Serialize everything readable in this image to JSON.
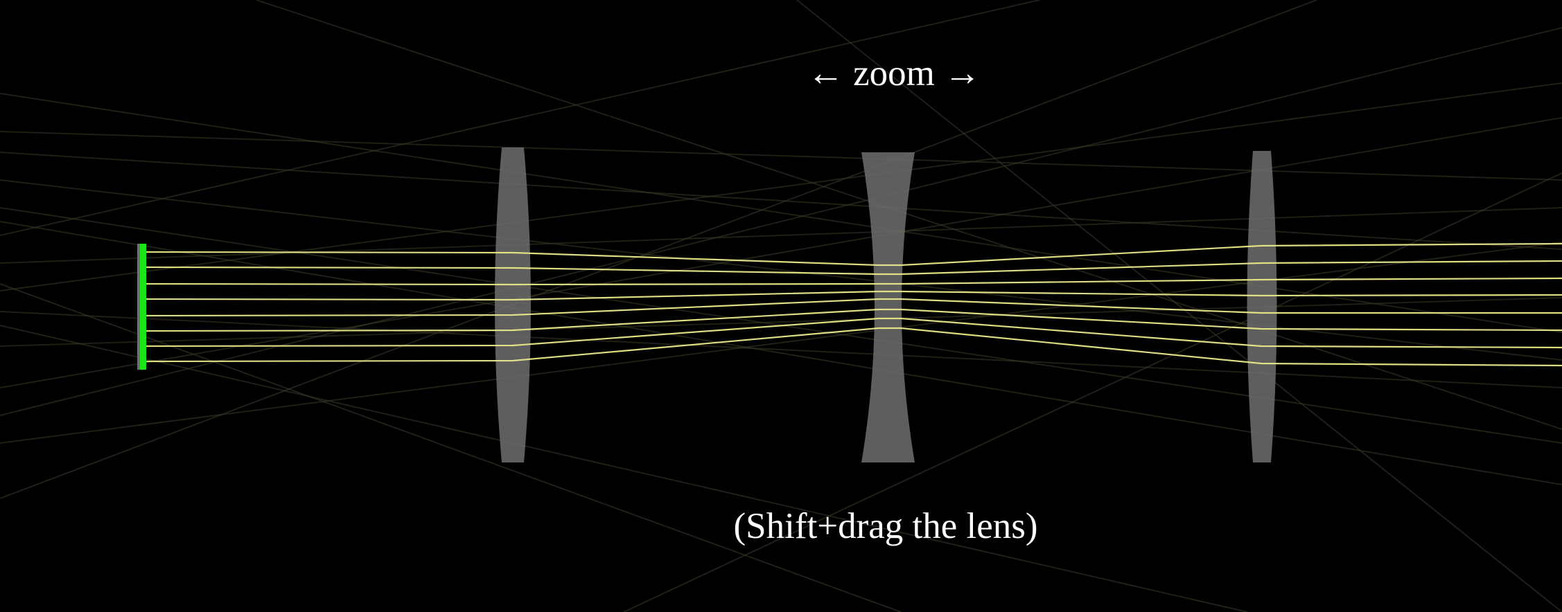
{
  "hints": {
    "zoom": "← zoom →",
    "shift": "(Shift+drag the lens)"
  },
  "colors": {
    "background": "#000000",
    "ray": "#e8e88a",
    "stray_ray": "#3a3a28",
    "lens": "#6e6e6e",
    "source": "#19e619"
  },
  "elements": {
    "source": "light-source-bar",
    "lenses": [
      "convex-lens",
      "concave-lens",
      "convex-lens"
    ]
  }
}
